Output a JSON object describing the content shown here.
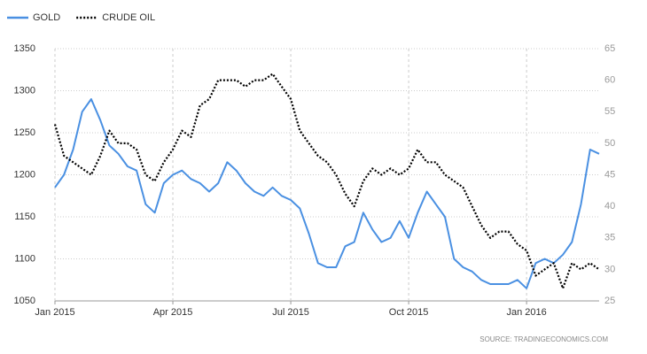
{
  "chart_data": {
    "type": "line",
    "categories": [
      "Jan 2015",
      null,
      null,
      null,
      null,
      null,
      null,
      null,
      null,
      null,
      null,
      null,
      null,
      "Apr 2015",
      null,
      null,
      null,
      null,
      null,
      null,
      null,
      null,
      null,
      null,
      null,
      null,
      "Jul 2015",
      null,
      null,
      null,
      null,
      null,
      null,
      null,
      null,
      null,
      null,
      null,
      null,
      "Oct 2015",
      null,
      null,
      null,
      null,
      null,
      null,
      null,
      null,
      null,
      null,
      null,
      null,
      "Jan 2016",
      null,
      null,
      null,
      null,
      null,
      null,
      null,
      null
    ],
    "series": [
      {
        "name": "GOLD",
        "color": "#4a90e2",
        "line_style": "solid",
        "values": [
          1185,
          1200,
          1230,
          1275,
          1290,
          1265,
          1235,
          1225,
          1210,
          1205,
          1165,
          1155,
          1190,
          1200,
          1205,
          1195,
          1190,
          1180,
          1190,
          1215,
          1205,
          1190,
          1180,
          1175,
          1185,
          1175,
          1170,
          1160,
          1130,
          1095,
          1090,
          1090,
          1115,
          1120,
          1155,
          1135,
          1120,
          1125,
          1145,
          1125,
          1155,
          1180,
          1165,
          1150,
          1100,
          1090,
          1085,
          1075,
          1070,
          1070,
          1070,
          1075,
          1065,
          1095,
          1100,
          1095,
          1105,
          1120,
          1165,
          1230,
          1225
        ]
      },
      {
        "name": "CRUDE OIL",
        "color": "#000000",
        "line_style": "dotted",
        "axis": "y2",
        "values": [
          53,
          48,
          47,
          46,
          45,
          48,
          52,
          50,
          50,
          49,
          45,
          44,
          47,
          49,
          52,
          51,
          56,
          57,
          60,
          60,
          60,
          59,
          60,
          60,
          61,
          59,
          57,
          52,
          50,
          48,
          47,
          45,
          42,
          40,
          44,
          46,
          45,
          46,
          45,
          46,
          49,
          47,
          47,
          45,
          44,
          43,
          40,
          37,
          35,
          36,
          36,
          34,
          33,
          29,
          30,
          31,
          27,
          31,
          30,
          31,
          30
        ]
      }
    ],
    "ylim": [
      1050,
      1350
    ],
    "yticks": [
      1050,
      1100,
      1150,
      1200,
      1250,
      1300,
      1350
    ],
    "y2lim": [
      25,
      65
    ],
    "y2ticks": [
      25,
      30,
      35,
      40,
      45,
      50,
      55,
      60,
      65
    ],
    "grid": true,
    "legend": "top-left",
    "source": "SOURCE: TRADINGECONOMICS.COM"
  }
}
